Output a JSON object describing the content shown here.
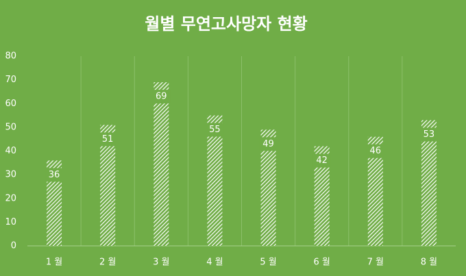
{
  "chart_data": {
    "type": "bar",
    "title": "월별 무연고사망자 현황",
    "categories": [
      "1 월",
      "2 월",
      "3 월",
      "4 월",
      "5 월",
      "6 월",
      "7 월",
      "8 월"
    ],
    "values": [
      36,
      51,
      69,
      55,
      49,
      42,
      46,
      53
    ],
    "color": "#ffffff",
    "background": "#70ad47",
    "ylim": [
      0,
      80
    ],
    "yticks": [
      0,
      10,
      20,
      30,
      40,
      50,
      60,
      70,
      80
    ]
  }
}
